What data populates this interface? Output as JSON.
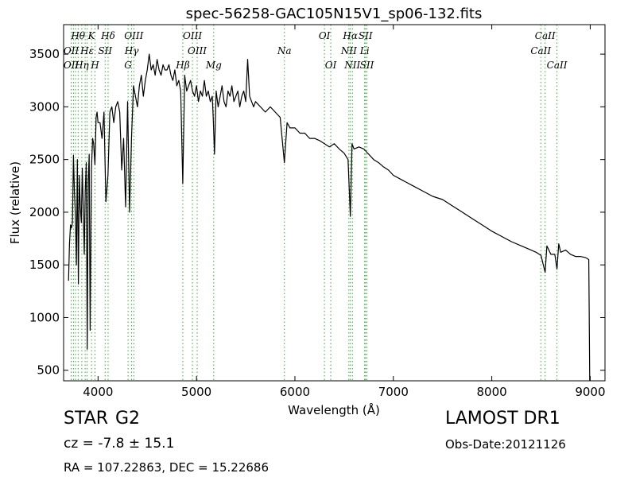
{
  "chart_data": {
    "type": "line",
    "title": "spec-56258-GAC105N15V1_sp06-132.fits",
    "xlabel": "Wavelength (Å)",
    "ylabel": "Flux (relative)",
    "xlim": [
      3650,
      9150
    ],
    "ylim": [
      400,
      3780
    ],
    "xticks": [
      4000,
      5000,
      6000,
      7000,
      8000,
      9000
    ],
    "yticks": [
      500,
      1000,
      1500,
      2000,
      2500,
      3000,
      3500
    ],
    "grid": false,
    "series": [
      {
        "x": [
          3700,
          3710,
          3720,
          3730,
          3740,
          3750,
          3760,
          3770,
          3780,
          3790,
          3800,
          3810,
          3820,
          3830,
          3840,
          3850,
          3860,
          3870,
          3880,
          3890,
          3900,
          3910,
          3920,
          3933,
          3945,
          3955,
          3968,
          3980,
          3990,
          4000,
          4020,
          4040,
          4060,
          4080,
          4101,
          4120,
          4140,
          4160,
          4180,
          4200,
          4220,
          4240,
          4260,
          4280,
          4300,
          4320,
          4340,
          4360,
          4380,
          4400,
          4420,
          4440,
          4460,
          4480,
          4500,
          4520,
          4540,
          4560,
          4580,
          4600,
          4620,
          4640,
          4660,
          4680,
          4700,
          4720,
          4740,
          4760,
          4780,
          4800,
          4820,
          4840,
          4861,
          4880,
          4900,
          4920,
          4940,
          4960,
          4980,
          5000,
          5020,
          5040,
          5060,
          5080,
          5100,
          5120,
          5140,
          5160,
          5170,
          5183,
          5200,
          5220,
          5240,
          5260,
          5280,
          5300,
          5320,
          5340,
          5360,
          5380,
          5400,
          5420,
          5440,
          5460,
          5480,
          5500,
          5520,
          5540,
          5560,
          5580,
          5600,
          5650,
          5700,
          5750,
          5800,
          5850,
          5893,
          5920,
          5950,
          6000,
          6050,
          6100,
          6150,
          6200,
          6250,
          6300,
          6350,
          6400,
          6450,
          6500,
          6540,
          6563,
          6580,
          6600,
          6650,
          6700,
          6750,
          6800,
          6850,
          6900,
          6950,
          7000,
          7100,
          7200,
          7300,
          7400,
          7500,
          7600,
          7700,
          7800,
          7900,
          8000,
          8100,
          8200,
          8300,
          8400,
          8450,
          8500,
          8542,
          8560,
          8600,
          8640,
          8662,
          8680,
          8700,
          8750,
          8800,
          8850,
          8900,
          8950,
          8970,
          8985,
          8995
        ],
        "y": [
          1350,
          1700,
          1880,
          1850,
          1900,
          2540,
          2200,
          1950,
          1500,
          2500,
          1320,
          2350,
          2050,
          1900,
          2420,
          2000,
          1600,
          2200,
          2470,
          700,
          2300,
          2550,
          880,
          2400,
          2700,
          2650,
          2450,
          2900,
          2950,
          2850,
          2850,
          2700,
          2950,
          2100,
          2350,
          2950,
          3000,
          2850,
          3000,
          3050,
          2950,
          2400,
          2700,
          2050,
          3050,
          2000,
          2700,
          3200,
          3100,
          3000,
          3200,
          3300,
          3100,
          3250,
          3350,
          3500,
          3350,
          3400,
          3300,
          3450,
          3350,
          3300,
          3400,
          3350,
          3350,
          3400,
          3300,
          3250,
          3350,
          3200,
          3250,
          3150,
          2270,
          3300,
          3150,
          3200,
          3250,
          3150,
          3100,
          3200,
          3050,
          3150,
          3100,
          3250,
          3100,
          3150,
          3050,
          3100,
          2900,
          2550,
          3150,
          3000,
          3100,
          3200,
          3050,
          3000,
          3150,
          3100,
          3200,
          3050,
          3100,
          3150,
          3000,
          3100,
          3150,
          3050,
          3450,
          3100,
          3050,
          3000,
          3050,
          3000,
          2950,
          3000,
          2950,
          2900,
          2470,
          2850,
          2800,
          2800,
          2750,
          2750,
          2700,
          2700,
          2680,
          2650,
          2620,
          2650,
          2600,
          2560,
          2500,
          1960,
          2650,
          2600,
          2620,
          2600,
          2550,
          2500,
          2470,
          2430,
          2400,
          2350,
          2300,
          2250,
          2200,
          2150,
          2120,
          2060,
          2000,
          1940,
          1880,
          1820,
          1770,
          1720,
          1680,
          1640,
          1620,
          1590,
          1430,
          1680,
          1600,
          1600,
          1460,
          1700,
          1620,
          1640,
          1600,
          1580,
          1580,
          1570,
          1560,
          1550,
          400
        ]
      }
    ],
    "annotations": [
      {
        "label": "Hθ",
        "x": 3797,
        "row": 1
      },
      {
        "label": "K",
        "x": 3934,
        "row": 1
      },
      {
        "label": "Hδ",
        "x": 4102,
        "row": 1
      },
      {
        "label": "OIII",
        "x": 4363,
        "row": 1
      },
      {
        "label": "OIII",
        "x": 4959,
        "row": 1
      },
      {
        "label": "OI",
        "x": 6300,
        "row": 1
      },
      {
        "label": "Hα",
        "x": 6563,
        "row": 1
      },
      {
        "label": "SII",
        "x": 6717,
        "row": 1
      },
      {
        "label": "CaII",
        "x": 8542,
        "row": 1
      },
      {
        "label": "OII",
        "x": 3727,
        "row": 2
      },
      {
        "label": "Hε",
        "x": 3889,
        "row": 2
      },
      {
        "label": "SII",
        "x": 4072,
        "row": 2
      },
      {
        "label": "Hγ",
        "x": 4341,
        "row": 2
      },
      {
        "label": "OIII",
        "x": 5007,
        "row": 2
      },
      {
        "label": "Na",
        "x": 5893,
        "row": 2
      },
      {
        "label": "NII",
        "x": 6548,
        "row": 2
      },
      {
        "label": "Li",
        "x": 6708,
        "row": 2
      },
      {
        "label": "CaII",
        "x": 8498,
        "row": 2
      },
      {
        "label": "Hη",
        "x": 3835,
        "row": 3
      },
      {
        "label": "OII",
        "x": 3727,
        "row": 3
      },
      {
        "label": "H",
        "x": 3969,
        "row": 3
      },
      {
        "label": "G",
        "x": 4305,
        "row": 3
      },
      {
        "label": "Hβ",
        "x": 4861,
        "row": 3
      },
      {
        "label": "Mg",
        "x": 5175,
        "row": 3
      },
      {
        "label": "OI",
        "x": 6364,
        "row": 3
      },
      {
        "label": "NII",
        "x": 6584,
        "row": 3
      },
      {
        "label": "SII",
        "x": 6731,
        "row": 3
      },
      {
        "label": "CaII",
        "x": 8662,
        "row": 3
      }
    ],
    "line_markers": [
      3727,
      3750,
      3771,
      3798,
      3835,
      3869,
      3889,
      3934,
      3969,
      4072,
      4102,
      4305,
      4341,
      4363,
      4861,
      4959,
      5007,
      5175,
      5893,
      6300,
      6364,
      6548,
      6563,
      6584,
      6708,
      6717,
      6731,
      8498,
      8542,
      8662
    ],
    "colors": {
      "spectrum": "#000000",
      "markers": "#33aa33"
    }
  },
  "info": {
    "object_class": "STAR",
    "subclass": "G2",
    "survey": "LAMOST DR1",
    "cz_text": "cz = -7.8 ± 15.1",
    "obs_date": "Obs-Date:20121126",
    "coords": "RA = 107.22863, DEC = 15.22686"
  }
}
